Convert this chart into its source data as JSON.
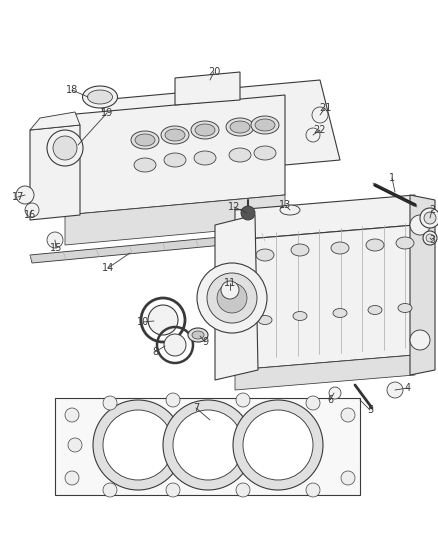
{
  "background_color": "#ffffff",
  "fig_width": 4.38,
  "fig_height": 5.33,
  "dpi": 100,
  "line_color": "#3a3a3a",
  "label_color": "#3a3a3a",
  "fill_light": "#f2f2f2",
  "fill_mid": "#e0e0e0",
  "fill_dark": "#c8c8c8",
  "lw_main": 0.8,
  "lw_thin": 0.5,
  "lw_thick": 1.2
}
